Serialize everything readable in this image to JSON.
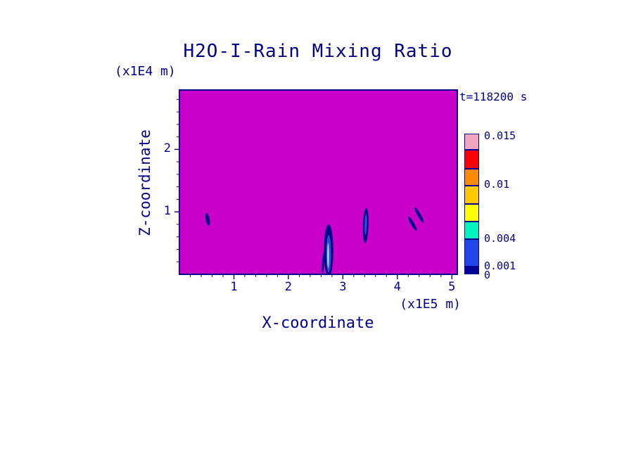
{
  "colors": {
    "text": "#00008B",
    "frame": "#00008B",
    "field": "#C800C8",
    "page_bg": "#FFFFFF"
  },
  "chart_data": {
    "type": "heatmap",
    "title": "H2O-I-Rain Mixing Ratio",
    "time_label": "t=118200 s",
    "xlabel": "X-coordinate",
    "x_unit": "(x1E5 m)",
    "ylabel": "Z-coordinate",
    "y_unit": "(x1E4 m)",
    "xlim": [
      0,
      5.1
    ],
    "ylim": [
      0,
      2.95
    ],
    "x_ticks": [
      "1",
      "2",
      "3",
      "4",
      "5"
    ],
    "y_ticks": [
      "1",
      "2"
    ],
    "x_minor_step": 0.2,
    "y_minor_step": 0.2,
    "grid": false,
    "legend_position": "right",
    "field_description": "Rain mixing ratio field: uniform magenta background (below lowest contour level) with small isolated blue rain cores near z = 1 (x1E4 m) and below",
    "contour_levels": [
      0,
      0.001,
      0.004,
      0.01,
      0.015
    ],
    "colorbar": {
      "position": "right",
      "labels": [
        {
          "text": "0.015",
          "f": 0.02
        },
        {
          "text": "0.01",
          "f": 0.365
        },
        {
          "text": "0.004",
          "f": 0.75
        },
        {
          "text": "0.001",
          "f": 0.945
        },
        {
          "text": "0",
          "f": 1.01
        }
      ],
      "segments": [
        {
          "color": "#F2A5BE",
          "f0": 0.0,
          "f1": 0.115
        },
        {
          "color": "#FF0000",
          "f0": 0.115,
          "f1": 0.25
        },
        {
          "color": "#FF8C00",
          "f0": 0.25,
          "f1": 0.37
        },
        {
          "color": "#FFC800",
          "f0": 0.37,
          "f1": 0.5
        },
        {
          "color": "#FFFF00",
          "f0": 0.5,
          "f1": 0.625
        },
        {
          "color": "#00F5BE",
          "f0": 0.625,
          "f1": 0.75
        },
        {
          "color": "#2346E6",
          "f0": 0.75,
          "f1": 0.945
        },
        {
          "color": "#000099",
          "f0": 0.945,
          "f1": 1.0
        }
      ]
    },
    "features": [
      {
        "x": 0.52,
        "z": 0.88,
        "rx": 0.035,
        "rz": 0.1,
        "rot": -10,
        "color": "#00008B"
      },
      {
        "x": 2.64,
        "z": 0.18,
        "rx": 0.02,
        "rz": 0.18,
        "rot": 4,
        "color": "#00008B"
      },
      {
        "x": 2.74,
        "z": 0.38,
        "rx": 0.085,
        "rz": 0.42,
        "rot": 0,
        "color": "#00008B"
      },
      {
        "x": 2.74,
        "z": 0.33,
        "rx": 0.045,
        "rz": 0.3,
        "rot": 0,
        "color": "#2A4FD6"
      },
      {
        "x": 2.73,
        "z": 0.3,
        "rx": 0.016,
        "rz": 0.2,
        "rot": 0,
        "color": "#BFD8FF"
      },
      {
        "x": 3.42,
        "z": 0.78,
        "rx": 0.05,
        "rz": 0.28,
        "rot": 2,
        "color": "#00008B"
      },
      {
        "x": 3.42,
        "z": 0.8,
        "rx": 0.022,
        "rz": 0.17,
        "rot": 2,
        "color": "#2A4FD6"
      },
      {
        "x": 4.28,
        "z": 0.81,
        "rx": 0.03,
        "rz": 0.13,
        "rot": -30,
        "color": "#00008B"
      },
      {
        "x": 4.4,
        "z": 0.95,
        "rx": 0.03,
        "rz": 0.14,
        "rot": -30,
        "color": "#00008B"
      }
    ]
  }
}
